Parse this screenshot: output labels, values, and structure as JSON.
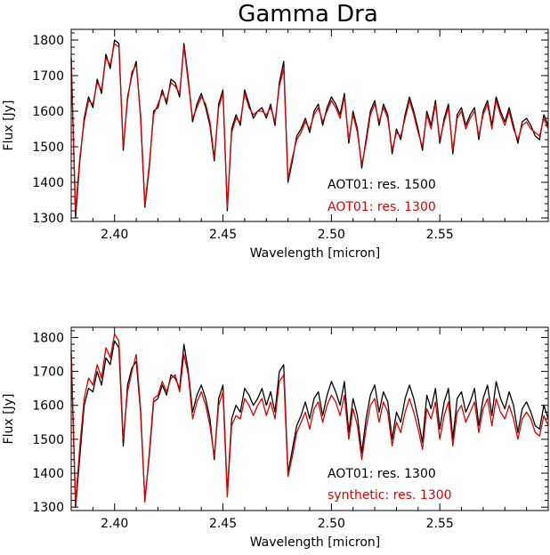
{
  "title": "Gamma Dra",
  "colors": {
    "black": "#000000",
    "red": "#e00000"
  },
  "chart_data": [
    {
      "type": "line",
      "xlabel": "Wavelength [micron]",
      "ylabel": "Flux [Jy]",
      "xlim": [
        2.38,
        2.6
      ],
      "ylim": [
        1290,
        1830
      ],
      "xticks": [
        "2.40",
        "2.45",
        "2.50",
        "2.55"
      ],
      "yticks": [
        "1300",
        "1400",
        "1500",
        "1600",
        "1700",
        "1800"
      ],
      "x": [
        2.38,
        2.382,
        2.384,
        2.386,
        2.388,
        2.39,
        2.392,
        2.394,
        2.396,
        2.398,
        2.4,
        2.402,
        2.404,
        2.406,
        2.408,
        2.41,
        2.412,
        2.414,
        2.416,
        2.418,
        2.42,
        2.422,
        2.424,
        2.426,
        2.428,
        2.43,
        2.432,
        2.434,
        2.436,
        2.438,
        2.44,
        2.442,
        2.444,
        2.446,
        2.448,
        2.45,
        2.452,
        2.454,
        2.456,
        2.458,
        2.46,
        2.462,
        2.464,
        2.466,
        2.468,
        2.47,
        2.472,
        2.474,
        2.476,
        2.478,
        2.48,
        2.482,
        2.484,
        2.486,
        2.488,
        2.49,
        2.492,
        2.494,
        2.496,
        2.498,
        2.5,
        2.502,
        2.504,
        2.506,
        2.508,
        2.51,
        2.512,
        2.514,
        2.516,
        2.518,
        2.52,
        2.522,
        2.524,
        2.526,
        2.528,
        2.53,
        2.532,
        2.534,
        2.536,
        2.538,
        2.54,
        2.542,
        2.544,
        2.546,
        2.548,
        2.55,
        2.552,
        2.554,
        2.556,
        2.558,
        2.56,
        2.562,
        2.564,
        2.566,
        2.568,
        2.57,
        2.572,
        2.574,
        2.576,
        2.578,
        2.58,
        2.582,
        2.584,
        2.586,
        2.588,
        2.59,
        2.592,
        2.594,
        2.596,
        2.598,
        2.6
      ],
      "series": [
        {
          "name": "AOT01: res. 1500",
          "color": "#000000",
          "values": [
            1750,
            1300,
            1460,
            1580,
            1640,
            1610,
            1690,
            1650,
            1760,
            1720,
            1800,
            1790,
            1490,
            1640,
            1700,
            1740,
            1580,
            1330,
            1440,
            1600,
            1610,
            1660,
            1620,
            1690,
            1680,
            1640,
            1790,
            1690,
            1570,
            1620,
            1650,
            1610,
            1560,
            1460,
            1620,
            1660,
            1320,
            1550,
            1590,
            1560,
            1660,
            1620,
            1580,
            1600,
            1610,
            1580,
            1620,
            1560,
            1680,
            1740,
            1400,
            1460,
            1530,
            1550,
            1580,
            1540,
            1600,
            1620,
            1560,
            1610,
            1640,
            1620,
            1590,
            1650,
            1510,
            1600,
            1550,
            1440,
            1520,
            1600,
            1630,
            1560,
            1620,
            1590,
            1480,
            1550,
            1520,
            1590,
            1640,
            1600,
            1550,
            1490,
            1600,
            1560,
            1630,
            1510,
            1580,
            1620,
            1480,
            1590,
            1610,
            1560,
            1590,
            1610,
            1520,
            1600,
            1630,
            1560,
            1640,
            1600,
            1570,
            1610,
            1560,
            1510,
            1570,
            1580,
            1560,
            1530,
            1520,
            1590,
            1560
          ]
        },
        {
          "name": "AOT01: res. 1300",
          "color": "#e00000",
          "values": [
            1740,
            1320,
            1470,
            1570,
            1630,
            1620,
            1680,
            1660,
            1750,
            1730,
            1790,
            1780,
            1500,
            1630,
            1710,
            1730,
            1590,
            1335,
            1450,
            1590,
            1620,
            1650,
            1630,
            1680,
            1670,
            1650,
            1780,
            1680,
            1580,
            1610,
            1640,
            1620,
            1570,
            1470,
            1610,
            1650,
            1330,
            1540,
            1580,
            1570,
            1650,
            1610,
            1590,
            1600,
            1600,
            1590,
            1610,
            1570,
            1670,
            1720,
            1410,
            1470,
            1520,
            1540,
            1570,
            1550,
            1590,
            1610,
            1570,
            1600,
            1630,
            1610,
            1580,
            1640,
            1520,
            1590,
            1540,
            1450,
            1510,
            1590,
            1620,
            1570,
            1610,
            1580,
            1490,
            1540,
            1530,
            1580,
            1630,
            1590,
            1540,
            1500,
            1590,
            1550,
            1620,
            1520,
            1570,
            1610,
            1490,
            1580,
            1600,
            1550,
            1580,
            1600,
            1530,
            1590,
            1620,
            1550,
            1630,
            1590,
            1560,
            1600,
            1550,
            1520,
            1560,
            1570,
            1550,
            1540,
            1530,
            1580,
            1550
          ]
        }
      ]
    },
    {
      "type": "line",
      "xlabel": "Wavelength [micron]",
      "ylabel": "Flux [Jy]",
      "xlim": [
        2.38,
        2.6
      ],
      "ylim": [
        1290,
        1830
      ],
      "xticks": [
        "2.40",
        "2.45",
        "2.50",
        "2.55"
      ],
      "yticks": [
        "1300",
        "1400",
        "1500",
        "1600",
        "1700",
        "1800"
      ],
      "x": [
        2.38,
        2.382,
        2.384,
        2.386,
        2.388,
        2.39,
        2.392,
        2.394,
        2.396,
        2.398,
        2.4,
        2.402,
        2.404,
        2.406,
        2.408,
        2.41,
        2.412,
        2.414,
        2.416,
        2.418,
        2.42,
        2.422,
        2.424,
        2.426,
        2.428,
        2.43,
        2.432,
        2.434,
        2.436,
        2.438,
        2.44,
        2.442,
        2.444,
        2.446,
        2.448,
        2.45,
        2.452,
        2.454,
        2.456,
        2.458,
        2.46,
        2.462,
        2.464,
        2.466,
        2.468,
        2.47,
        2.472,
        2.474,
        2.476,
        2.478,
        2.48,
        2.482,
        2.484,
        2.486,
        2.488,
        2.49,
        2.492,
        2.494,
        2.496,
        2.498,
        2.5,
        2.502,
        2.504,
        2.506,
        2.508,
        2.51,
        2.512,
        2.514,
        2.516,
        2.518,
        2.52,
        2.522,
        2.524,
        2.526,
        2.528,
        2.53,
        2.532,
        2.534,
        2.536,
        2.538,
        2.54,
        2.542,
        2.544,
        2.546,
        2.548,
        2.55,
        2.552,
        2.554,
        2.556,
        2.558,
        2.56,
        2.562,
        2.564,
        2.566,
        2.568,
        2.57,
        2.572,
        2.574,
        2.576,
        2.578,
        2.58,
        2.582,
        2.584,
        2.586,
        2.588,
        2.59,
        2.592,
        2.594,
        2.596,
        2.598,
        2.6
      ],
      "series": [
        {
          "name": "AOT01: res. 1300",
          "color": "#000000",
          "values": [
            1750,
            1300,
            1450,
            1600,
            1650,
            1640,
            1700,
            1660,
            1740,
            1720,
            1790,
            1770,
            1480,
            1660,
            1710,
            1730,
            1580,
            1320,
            1450,
            1610,
            1620,
            1660,
            1630,
            1690,
            1680,
            1650,
            1780,
            1700,
            1580,
            1630,
            1660,
            1620,
            1560,
            1440,
            1620,
            1660,
            1340,
            1560,
            1600,
            1580,
            1650,
            1630,
            1600,
            1620,
            1650,
            1600,
            1640,
            1580,
            1700,
            1720,
            1400,
            1470,
            1540,
            1570,
            1610,
            1560,
            1620,
            1640,
            1570,
            1630,
            1670,
            1640,
            1600,
            1670,
            1520,
            1620,
            1570,
            1460,
            1560,
            1630,
            1660,
            1580,
            1640,
            1610,
            1500,
            1580,
            1550,
            1620,
            1660,
            1620,
            1560,
            1490,
            1630,
            1590,
            1650,
            1530,
            1610,
            1650,
            1500,
            1620,
            1640,
            1580,
            1610,
            1650,
            1540,
            1620,
            1660,
            1570,
            1670,
            1620,
            1590,
            1640,
            1600,
            1520,
            1590,
            1610,
            1580,
            1540,
            1530,
            1600,
            1560
          ]
        },
        {
          "name": "synthetic: res. 1300",
          "color": "#e00000",
          "values": [
            1760,
            1310,
            1480,
            1620,
            1680,
            1660,
            1720,
            1680,
            1770,
            1740,
            1810,
            1790,
            1500,
            1640,
            1700,
            1750,
            1590,
            1315,
            1460,
            1620,
            1630,
            1670,
            1640,
            1680,
            1690,
            1640,
            1750,
            1690,
            1560,
            1610,
            1640,
            1600,
            1540,
            1450,
            1600,
            1640,
            1330,
            1540,
            1570,
            1560,
            1620,
            1600,
            1570,
            1600,
            1620,
            1570,
            1610,
            1560,
            1670,
            1690,
            1390,
            1450,
            1520,
            1550,
            1580,
            1530,
            1590,
            1610,
            1550,
            1600,
            1630,
            1610,
            1570,
            1630,
            1500,
            1590,
            1540,
            1440,
            1530,
            1600,
            1620,
            1550,
            1610,
            1580,
            1480,
            1550,
            1520,
            1580,
            1620,
            1580,
            1530,
            1470,
            1590,
            1560,
            1610,
            1500,
            1570,
            1610,
            1480,
            1580,
            1600,
            1550,
            1580,
            1610,
            1520,
            1590,
            1620,
            1540,
            1620,
            1580,
            1560,
            1600,
            1560,
            1500,
            1560,
            1580,
            1560,
            1520,
            1510,
            1570,
            1540
          ]
        }
      ]
    }
  ]
}
